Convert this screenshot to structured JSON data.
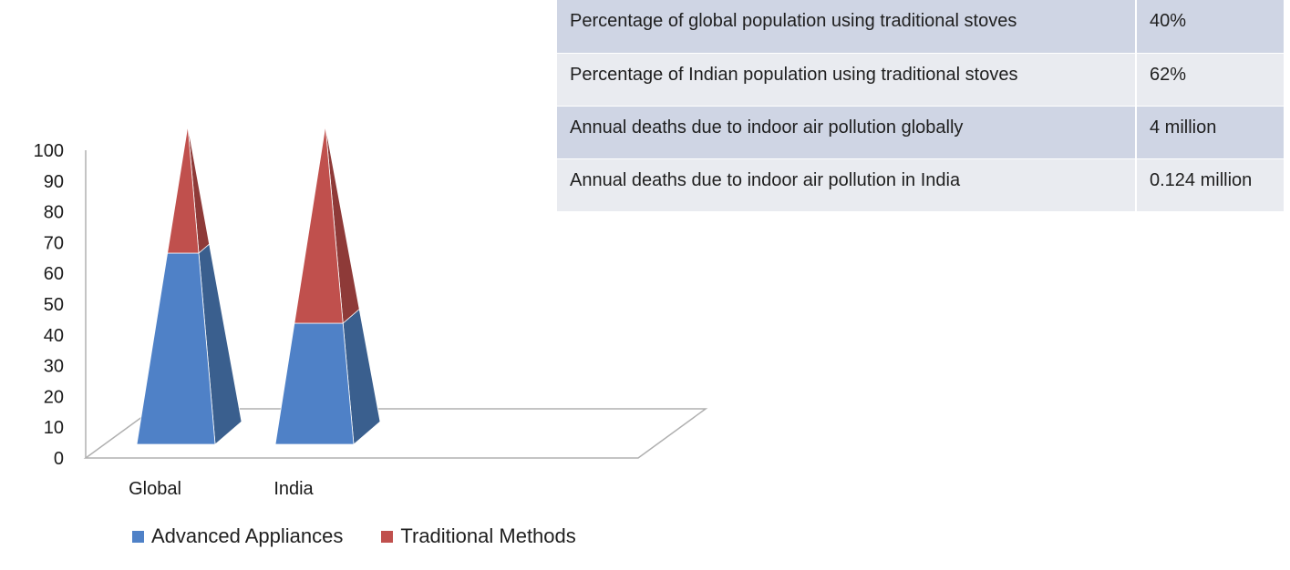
{
  "chart_data": {
    "type": "bar",
    "style": "3d-pyramid-stacked",
    "categories": [
      "Global",
      "India"
    ],
    "series": [
      {
        "name": "Advanced Appliances",
        "values": [
          60,
          38
        ],
        "color": "#4f81c7"
      },
      {
        "name": "Traditional Methods",
        "values": [
          40,
          62
        ],
        "color": "#c0504d"
      }
    ],
    "ylim": [
      0,
      100
    ],
    "yticks": [
      "0",
      "10",
      "20",
      "30",
      "40",
      "50",
      "60",
      "70",
      "80",
      "90",
      "100"
    ],
    "legend_position": "bottom",
    "grid": false
  },
  "table": {
    "rows": [
      {
        "label": "Percentage of global population using traditional stoves",
        "value": "40%"
      },
      {
        "label": "Percentage of Indian population using traditional stoves",
        "value": "62%"
      },
      {
        "label": "Annual deaths due to indoor air pollution globally",
        "value": "4 million"
      },
      {
        "label": "Annual deaths due to indoor air pollution in India",
        "value": "0.124 million"
      }
    ]
  }
}
